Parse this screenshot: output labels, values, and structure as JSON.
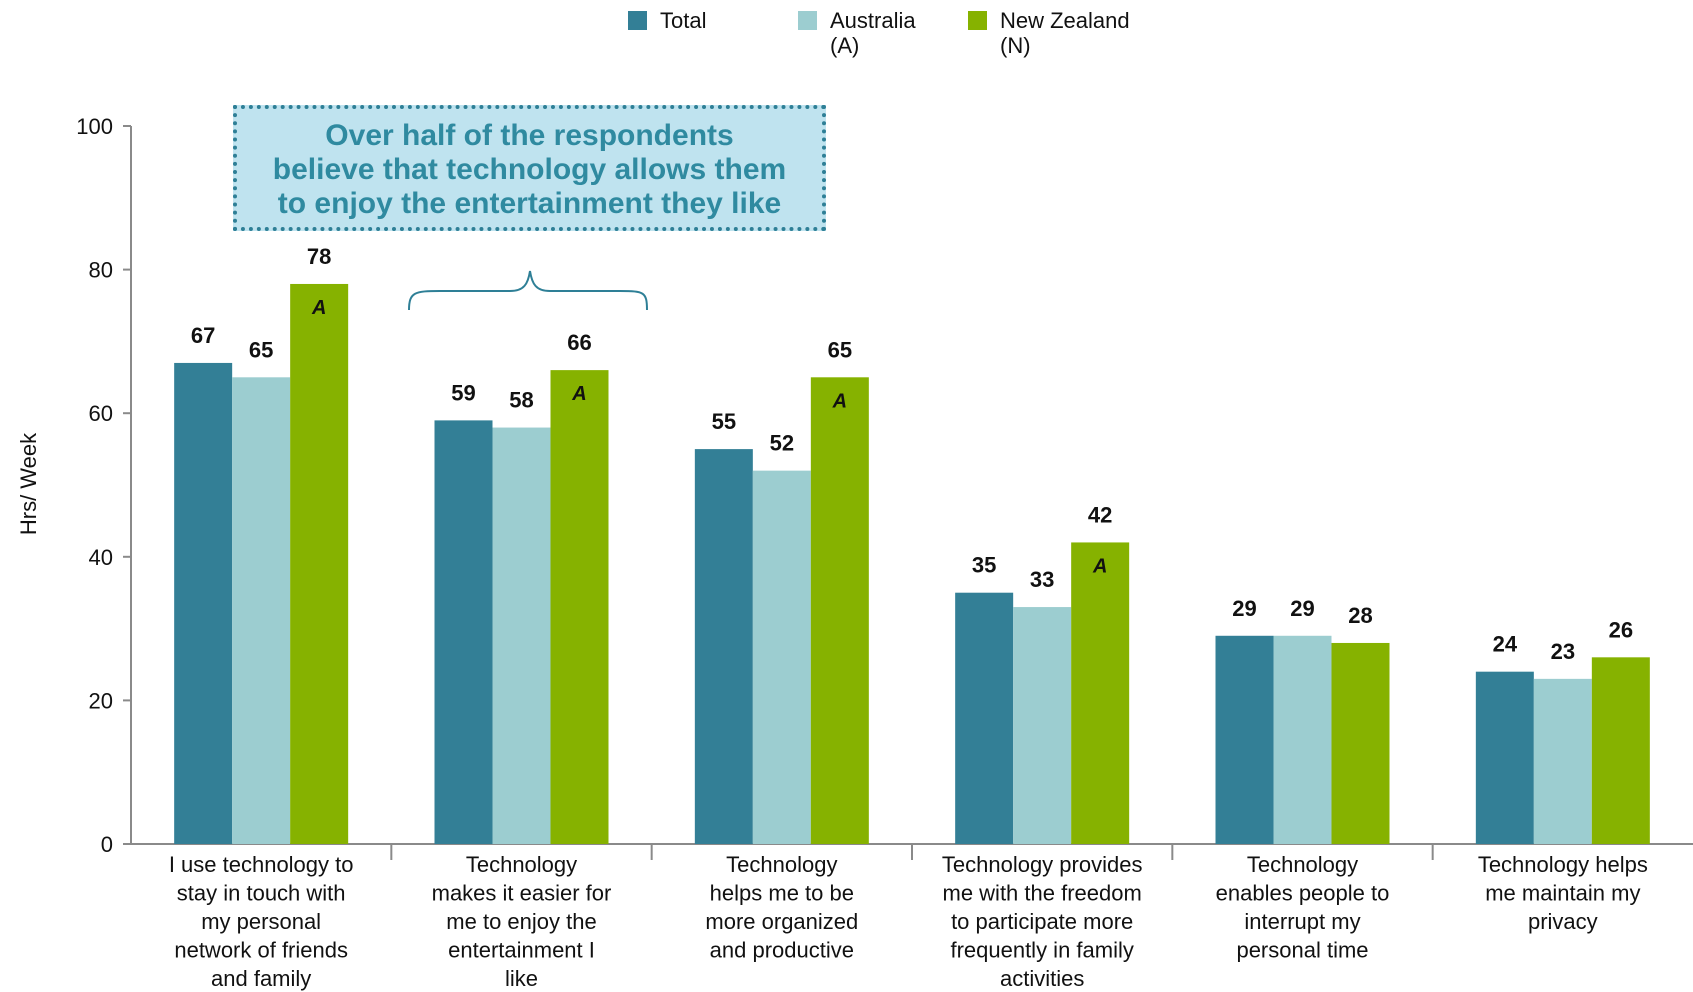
{
  "chart_data": {
    "type": "bar",
    "ylabel": "Hrs/ Week",
    "ylim": [
      0,
      100
    ],
    "yticks": [
      0,
      20,
      40,
      60,
      80,
      100
    ],
    "categories": [
      "I use technology to stay in touch with my personal network of friends and family",
      "Technology makes it easier for me to enjoy the entertainment I like",
      "Technology helps me to be more organized and productive",
      "Technology provides me with the freedom to participate more frequently in family activities",
      "Technology enables people to interrupt my personal time",
      "Technology helps me maintain my privacy"
    ],
    "category_lines": [
      [
        "I use technology to",
        "stay in touch with",
        "my personal",
        "network of friends",
        "and family"
      ],
      [
        "Technology",
        "makes it easier for",
        "me to enjoy the",
        "entertainment I",
        "like"
      ],
      [
        "Technology",
        "helps me to be",
        "more organized",
        "and productive"
      ],
      [
        "Technology provides",
        "me with the freedom",
        "to participate more",
        "frequently in family",
        "activities"
      ],
      [
        "Technology",
        "enables people to",
        "interrupt my",
        "personal time"
      ],
      [
        "Technology helps",
        "me maintain my",
        "privacy"
      ]
    ],
    "series": [
      {
        "name": "Total",
        "color": "#337f96",
        "values": [
          67,
          59,
          55,
          35,
          29,
          24
        ],
        "markers": [
          "",
          "",
          "",
          "",
          "",
          ""
        ]
      },
      {
        "name": "Australia (A)",
        "legend_lines": [
          "Australia",
          "(A)"
        ],
        "color": "#9ccdd0",
        "values": [
          65,
          58,
          52,
          33,
          29,
          23
        ],
        "markers": [
          "",
          "",
          "",
          "",
          "",
          ""
        ]
      },
      {
        "name": "New Zealand (N)",
        "legend_lines": [
          "New Zealand",
          "(N)"
        ],
        "color": "#86b200",
        "values": [
          78,
          66,
          65,
          42,
          28,
          26
        ],
        "markers": [
          "A",
          "A",
          "A",
          "A",
          "",
          ""
        ]
      }
    ],
    "legend_position": "top-center",
    "grid": false,
    "annotation": "Over half of the respondents believe that technology allows them to enjoy the entertainment they like",
    "annotation_lines": [
      "Over half of the respondents",
      "believe that technology allows them",
      "to enjoy the entertainment they like"
    ]
  },
  "colors": {
    "callout_bg": "#bfe3ef",
    "callout_text": "#2f8aa0",
    "brace": "#2e7f96",
    "axis": "#8a8a8a"
  }
}
